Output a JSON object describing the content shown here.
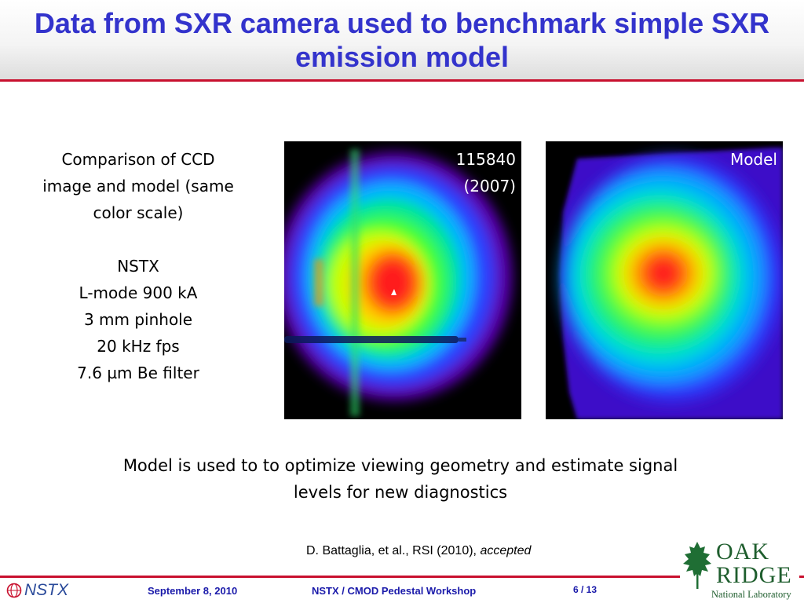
{
  "slide": {
    "title": "Data from SXR camera used to benchmark simple SXR emission model",
    "description_lines": [
      "Comparison of CCD",
      "image and model (same",
      "color scale)",
      "NSTX",
      "L-mode 900 kA",
      "3 mm pinhole",
      "20 kHz fps",
      "7.6 µm Be filter"
    ],
    "image_left": {
      "label_line1": "115840",
      "label_line2": "(2007)"
    },
    "image_right": {
      "label": "Model"
    },
    "caption_line1": "Model is used to to optimize viewing geometry and estimate signal",
    "caption_line2": "levels for new diagnostics",
    "citation_main": "D. Battaglia, et al., RSI (2010), ",
    "citation_italic": "accepted"
  },
  "footer": {
    "logo_text": "NSTX",
    "date": "September 8, 2010",
    "event": "NSTX / CMOD Pedestal Workshop",
    "page": "6 / 13",
    "ornl_line1": "OAK",
    "ornl_line2": "RIDGE",
    "ornl_line3": "National Laboratory"
  },
  "colors": {
    "title": "#3333cc",
    "accent_rule": "#c8102e",
    "footer_text": "#1a1aaa",
    "ornl_green": "#1f5e2e"
  }
}
